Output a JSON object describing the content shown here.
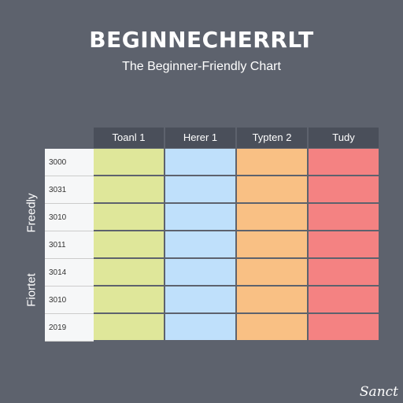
{
  "title": "BEGINNECHERRLT",
  "subtitle": "The Beginner-Friendly Chart",
  "side_labels": [
    "Freedly",
    "Fiortet"
  ],
  "signature": "Sanct",
  "colors": {
    "background": "#5d626d",
    "header": "#4a4f5a",
    "col1": "#dfe79a",
    "col2": "#bfe0fb",
    "col3": "#f9c084",
    "col4": "#f48282"
  },
  "chart_data": {
    "type": "table",
    "title": "BEGINNECHERRLT",
    "subtitle": "The Beginner-Friendly Chart",
    "columns": [
      "Toanl 1",
      "Herer 1",
      "Typten 2",
      "Tudy"
    ],
    "rows": [
      "3000",
      "3031",
      "3010",
      "3011",
      "3014",
      "3010",
      "2019"
    ],
    "column_colors": [
      "#dfe79a",
      "#bfe0fb",
      "#f9c084",
      "#f48282"
    ]
  }
}
